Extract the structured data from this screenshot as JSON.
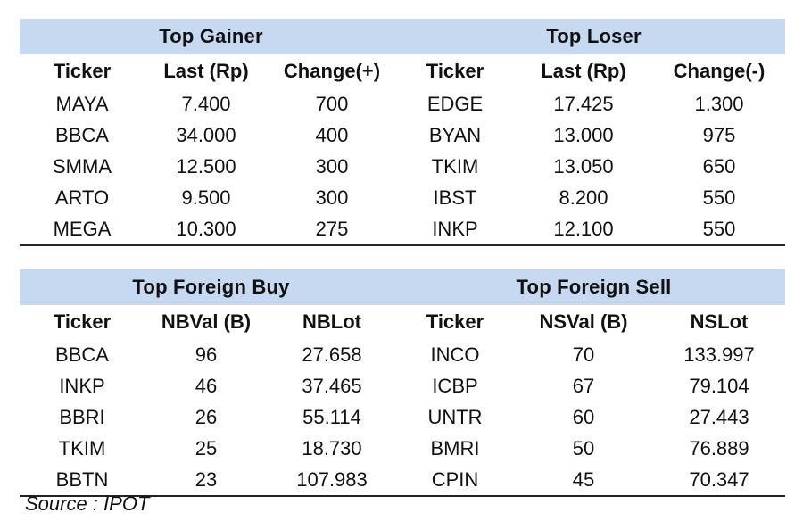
{
  "gainer_loser": {
    "title_left": "Top Gainer",
    "title_right": "Top Loser",
    "headers": [
      "Ticker",
      "Last (Rp)",
      "Change(+)",
      "Ticker",
      "Last (Rp)",
      "Change(-)"
    ],
    "rows": [
      [
        "MAYA",
        "7.400",
        "700",
        "EDGE",
        "17.425",
        "1.300"
      ],
      [
        "BBCA",
        "34.000",
        "400",
        "BYAN",
        "13.000",
        "975"
      ],
      [
        "SMMA",
        "12.500",
        "300",
        "TKIM",
        "13.050",
        "650"
      ],
      [
        "ARTO",
        "9.500",
        "300",
        "IBST",
        "8.200",
        "550"
      ],
      [
        "MEGA",
        "10.300",
        "275",
        "INKP",
        "12.100",
        "550"
      ]
    ]
  },
  "foreign": {
    "title_left": "Top Foreign Buy",
    "title_right": "Top Foreign Sell",
    "headers": [
      "Ticker",
      "NBVal (B)",
      "NBLot",
      "Ticker",
      "NSVal (B)",
      "NSLot"
    ],
    "rows": [
      [
        "BBCA",
        "96",
        "27.658",
        "INCO",
        "70",
        "133.997"
      ],
      [
        "INKP",
        "46",
        "37.465",
        "ICBP",
        "67",
        "79.104"
      ],
      [
        "BBRI",
        "26",
        "55.114",
        "UNTR",
        "60",
        "27.443"
      ],
      [
        "TKIM",
        "25",
        "18.730",
        "BMRI",
        "50",
        "76.889"
      ],
      [
        "BBTN",
        "23",
        "107.983",
        "CPIN",
        "45",
        "70.347"
      ]
    ]
  },
  "source": "Source : IPOT"
}
